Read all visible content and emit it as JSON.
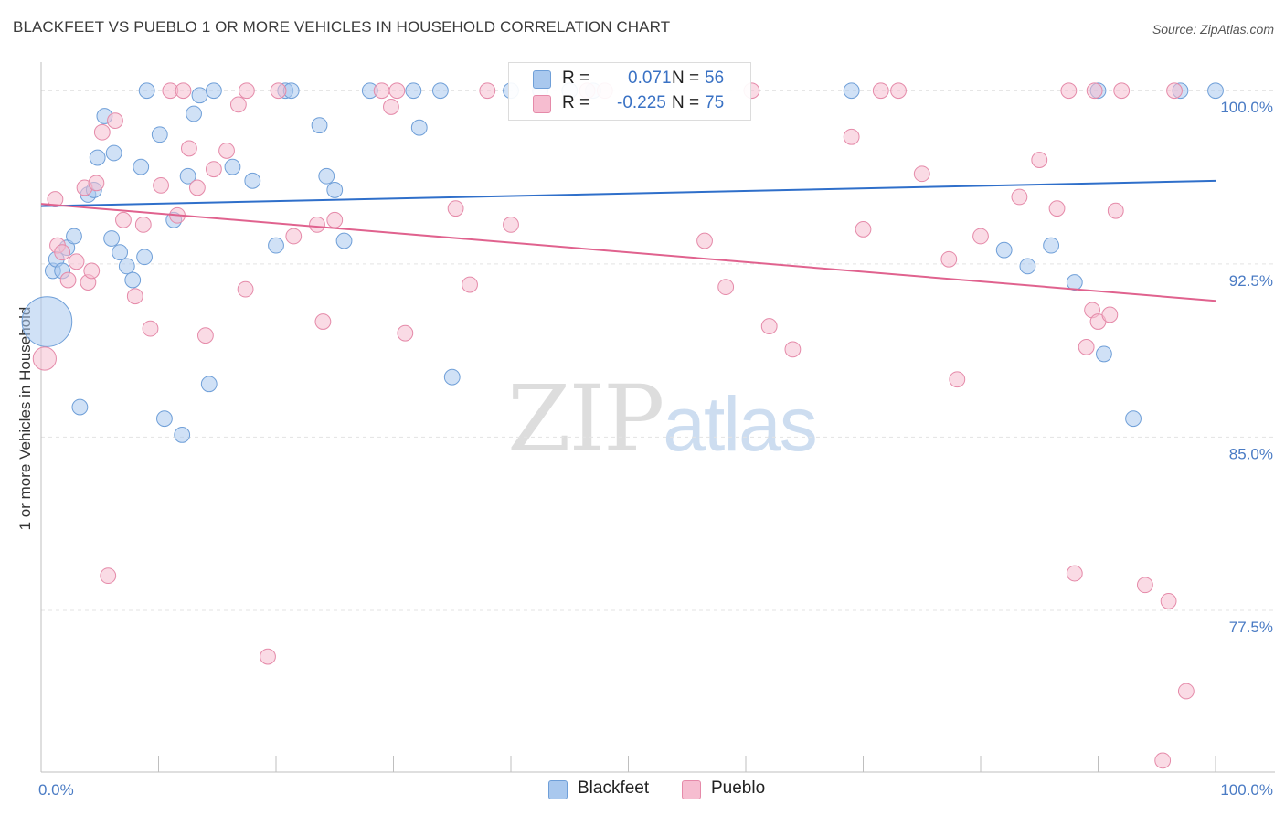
{
  "title": "BLACKFEET VS PUEBLO 1 OR MORE VEHICLES IN HOUSEHOLD CORRELATION CHART",
  "source": "Source: ZipAtlas.com",
  "watermark": {
    "zip": "ZIP",
    "atlas": "atlas"
  },
  "legend": {
    "r_label": "R =",
    "n_label": "N =",
    "entries": [
      {
        "name": "Blackfeet",
        "r": "0.071",
        "n": "56",
        "color": "#a9c8ee",
        "stroke": "#6f9fd8"
      },
      {
        "name": "Pueblo",
        "r": "-0.225",
        "n": "75",
        "color": "#f6bdd0",
        "stroke": "#e58aa9"
      }
    ]
  },
  "colors": {
    "blue_line": "#2f6fca",
    "pink_line": "#e0628e",
    "grid": "#e3e3e3",
    "axis": "#bfbfbf",
    "tick_text": "#4a7bc4"
  },
  "chart_data": {
    "type": "scatter",
    "title": "BLACKFEET VS PUEBLO 1 OR MORE VEHICLES IN HOUSEHOLD CORRELATION CHART",
    "xlabel": "",
    "ylabel": "1 or more Vehicles in Household",
    "xlim": [
      0,
      100
    ],
    "ylim": [
      70.5,
      100.8
    ],
    "x_tick_labels": [
      "0.0%",
      "100.0%"
    ],
    "y_ticks": [
      100.0,
      92.5,
      85.0,
      77.5
    ],
    "y_tick_labels": [
      "100.0%",
      "92.5%",
      "85.0%",
      "77.5%"
    ],
    "legend_position": "top-center",
    "series": [
      {
        "name": "Blackfeet",
        "trend": {
          "x": [
            0,
            100
          ],
          "y": [
            95.0,
            96.1
          ]
        },
        "points": [
          [
            0.5,
            90.0,
            26
          ],
          [
            1.0,
            92.2,
            8
          ],
          [
            1.3,
            92.7,
            8
          ],
          [
            1.8,
            92.2,
            8
          ],
          [
            2.2,
            93.2,
            8
          ],
          [
            2.8,
            93.7,
            8
          ],
          [
            3.3,
            86.3,
            8
          ],
          [
            4.0,
            95.5,
            8
          ],
          [
            4.5,
            95.7,
            8
          ],
          [
            4.8,
            97.1,
            8
          ],
          [
            5.4,
            98.9,
            8
          ],
          [
            6.2,
            97.3,
            8
          ],
          [
            6.0,
            93.6,
            8
          ],
          [
            6.7,
            93.0,
            8
          ],
          [
            7.3,
            92.4,
            8
          ],
          [
            7.8,
            91.8,
            8
          ],
          [
            8.5,
            96.7,
            8
          ],
          [
            8.8,
            92.8,
            8
          ],
          [
            9.0,
            100.0,
            8
          ],
          [
            10.1,
            98.1,
            8
          ],
          [
            10.5,
            85.8,
            8
          ],
          [
            11.3,
            94.4,
            8
          ],
          [
            12.0,
            85.1,
            8
          ],
          [
            12.5,
            96.3,
            8
          ],
          [
            13.0,
            99.0,
            8
          ],
          [
            13.5,
            99.8,
            8
          ],
          [
            14.3,
            87.3,
            8
          ],
          [
            14.7,
            100.0,
            8
          ],
          [
            16.3,
            96.7,
            8
          ],
          [
            18.0,
            96.1,
            8
          ],
          [
            20.0,
            93.3,
            8
          ],
          [
            20.8,
            100.0,
            8
          ],
          [
            21.3,
            100.0,
            8
          ],
          [
            23.7,
            98.5,
            8
          ],
          [
            24.3,
            96.3,
            8
          ],
          [
            25.0,
            95.7,
            8
          ],
          [
            25.8,
            93.5,
            8
          ],
          [
            28.0,
            100.0,
            8
          ],
          [
            31.7,
            100.0,
            8
          ],
          [
            32.2,
            98.4,
            8
          ],
          [
            34.0,
            100.0,
            8
          ],
          [
            35.0,
            87.6,
            8
          ],
          [
            40.0,
            100.0,
            8
          ],
          [
            42.5,
            100.0,
            8
          ],
          [
            45.0,
            100.0,
            8
          ],
          [
            47.0,
            100.0,
            8
          ],
          [
            69.0,
            100.0,
            8
          ],
          [
            82.0,
            93.1,
            8
          ],
          [
            84.0,
            92.4,
            8
          ],
          [
            86.0,
            93.3,
            8
          ],
          [
            88.0,
            91.7,
            8
          ],
          [
            90.0,
            100.0,
            8
          ],
          [
            90.5,
            88.6,
            8
          ],
          [
            93.0,
            85.8,
            8
          ],
          [
            97.0,
            100.0,
            8
          ],
          [
            100.0,
            100.0,
            8
          ]
        ]
      },
      {
        "name": "Pueblo",
        "trend": {
          "x": [
            0,
            100
          ],
          "y": [
            95.1,
            90.9
          ]
        },
        "points": [
          [
            0.3,
            88.4,
            12
          ],
          [
            1.2,
            95.3,
            8
          ],
          [
            1.4,
            93.3,
            8
          ],
          [
            1.8,
            93.0,
            8
          ],
          [
            2.3,
            91.8,
            8
          ],
          [
            3.0,
            92.6,
            8
          ],
          [
            3.7,
            95.8,
            8
          ],
          [
            4.0,
            91.7,
            8
          ],
          [
            4.3,
            92.2,
            8
          ],
          [
            4.7,
            96.0,
            8
          ],
          [
            5.2,
            98.2,
            8
          ],
          [
            5.7,
            79.0,
            8
          ],
          [
            6.3,
            98.7,
            8
          ],
          [
            7.0,
            94.4,
            8
          ],
          [
            8.0,
            91.1,
            8
          ],
          [
            8.7,
            94.2,
            8
          ],
          [
            9.3,
            89.7,
            8
          ],
          [
            10.2,
            95.9,
            8
          ],
          [
            11.0,
            100.0,
            8
          ],
          [
            11.6,
            94.6,
            8
          ],
          [
            12.1,
            100.0,
            8
          ],
          [
            12.6,
            97.5,
            8
          ],
          [
            13.3,
            95.8,
            8
          ],
          [
            14.0,
            89.4,
            8
          ],
          [
            14.7,
            96.6,
            8
          ],
          [
            15.8,
            97.4,
            8
          ],
          [
            16.8,
            99.4,
            8
          ],
          [
            17.4,
            91.4,
            8
          ],
          [
            17.5,
            100.0,
            8
          ],
          [
            19.3,
            75.5,
            8
          ],
          [
            20.2,
            100.0,
            8
          ],
          [
            21.5,
            93.7,
            8
          ],
          [
            23.5,
            94.2,
            8
          ],
          [
            24.0,
            90.0,
            8
          ],
          [
            25.0,
            94.4,
            8
          ],
          [
            29.0,
            100.0,
            8
          ],
          [
            29.8,
            99.3,
            8
          ],
          [
            30.3,
            100.0,
            8
          ],
          [
            31.0,
            89.5,
            8
          ],
          [
            35.3,
            94.9,
            8
          ],
          [
            36.5,
            91.6,
            8
          ],
          [
            38.0,
            100.0,
            8
          ],
          [
            40.0,
            94.2,
            8
          ],
          [
            46.5,
            100.0,
            8
          ],
          [
            48.0,
            100.0,
            8
          ],
          [
            56.5,
            93.5,
            8
          ],
          [
            58.3,
            91.5,
            8
          ],
          [
            60.5,
            100.0,
            8
          ],
          [
            62.0,
            89.8,
            8
          ],
          [
            64.0,
            88.8,
            8
          ],
          [
            69.0,
            98.0,
            8
          ],
          [
            70.0,
            94.0,
            8
          ],
          [
            71.5,
            100.0,
            8
          ],
          [
            73.0,
            100.0,
            8
          ],
          [
            75.0,
            96.4,
            8
          ],
          [
            77.3,
            92.7,
            8
          ],
          [
            78.0,
            87.5,
            8
          ],
          [
            80.0,
            93.7,
            8
          ],
          [
            83.3,
            95.4,
            8
          ],
          [
            85.0,
            97.0,
            8
          ],
          [
            86.5,
            94.9,
            8
          ],
          [
            87.5,
            100.0,
            8
          ],
          [
            88.0,
            79.1,
            8
          ],
          [
            89.0,
            88.9,
            8
          ],
          [
            89.5,
            90.5,
            8
          ],
          [
            89.7,
            100.0,
            8
          ],
          [
            90.0,
            90.0,
            8
          ],
          [
            91.0,
            90.3,
            8
          ],
          [
            91.5,
            94.8,
            8
          ],
          [
            92.0,
            100.0,
            8
          ],
          [
            94.0,
            78.6,
            8
          ],
          [
            96.0,
            77.9,
            8
          ],
          [
            96.5,
            100.0,
            8
          ],
          [
            97.5,
            74.0,
            8
          ],
          [
            95.5,
            71.0,
            8
          ]
        ]
      }
    ]
  }
}
